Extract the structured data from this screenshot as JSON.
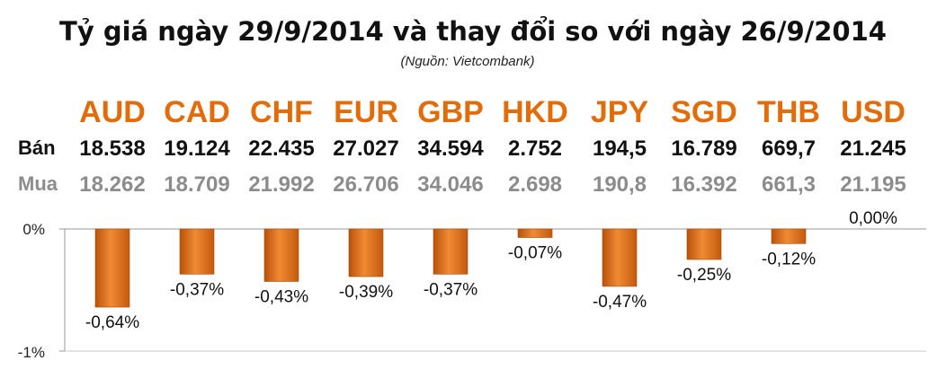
{
  "title": "Tỷ giá ngày 29/9/2014 và thay đổi so với ngày 26/9/2014",
  "source": "(Nguồn: Vietcombank)",
  "row_labels": {
    "sell": "Bán",
    "buy": "Mua"
  },
  "colors": {
    "currency": "#e36c0a",
    "bar": "#e8731a",
    "sell": "#111111",
    "buy": "#8c8c8c"
  },
  "chart_data": {
    "type": "bar",
    "categories": [
      "AUD",
      "CAD",
      "CHF",
      "EUR",
      "GBP",
      "HKD",
      "JPY",
      "SGD",
      "THB",
      "USD"
    ],
    "sell": [
      "18.538",
      "19.124",
      "22.435",
      "27.027",
      "34.594",
      "2.752",
      "194,5",
      "16.789",
      "669,7",
      "21.245"
    ],
    "buy": [
      "18.262",
      "18.709",
      "21.992",
      "26.706",
      "34.046",
      "2.698",
      "190,8",
      "16.392",
      "661,3",
      "21.195"
    ],
    "values": [
      -0.64,
      -0.37,
      -0.43,
      -0.39,
      -0.37,
      -0.07,
      -0.47,
      -0.25,
      -0.12,
      0.0
    ],
    "value_labels": [
      "-0,64%",
      "-0,37%",
      "-0,43%",
      "-0,39%",
      "-0,37%",
      "-0,07%",
      "-0,47%",
      "-0,25%",
      "-0,12%",
      "0,00%"
    ],
    "ylim": [
      -1,
      0
    ],
    "yticks": [
      "0%",
      "-1%"
    ],
    "grid": false,
    "legend": "none"
  }
}
